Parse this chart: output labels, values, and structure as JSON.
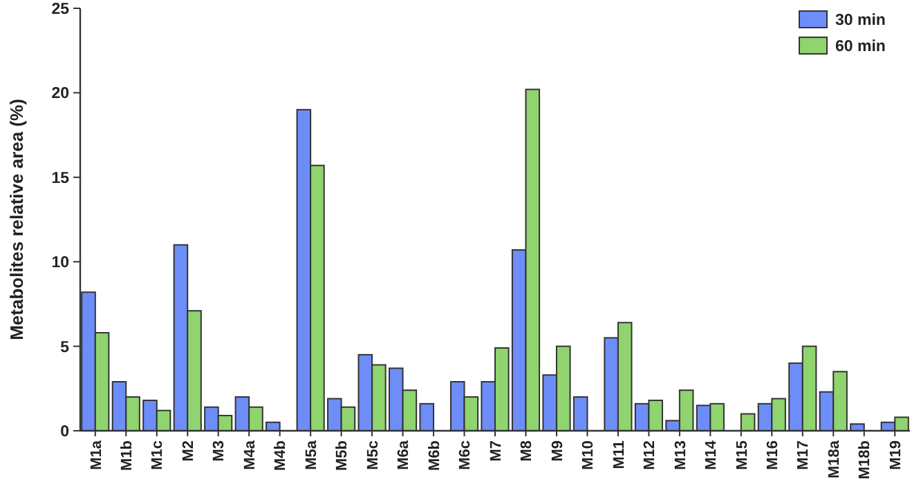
{
  "chart_data": {
    "type": "bar",
    "ylabel": "Metabolites relative area (%)",
    "categories": [
      "M1a",
      "M1b",
      "M1c",
      "M2",
      "M3",
      "M4a",
      "M4b",
      "M5a",
      "M5b",
      "M5c",
      "M6a",
      "M6b",
      "M6c",
      "M7",
      "M8",
      "M9",
      "M10",
      "M11",
      "M12",
      "M13",
      "M14",
      "M15",
      "M16",
      "M17",
      "M18a",
      "M18b",
      "M19"
    ],
    "series": [
      {
        "name": "30 min",
        "color": "#6d8ef9",
        "values": [
          8.2,
          2.9,
          1.8,
          11.0,
          1.4,
          2.0,
          0.5,
          19.0,
          1.9,
          4.5,
          3.7,
          1.6,
          2.9,
          2.9,
          10.7,
          3.3,
          2.0,
          5.5,
          1.6,
          0.6,
          1.5,
          null,
          1.6,
          4.0,
          2.3,
          0.4,
          0.5
        ]
      },
      {
        "name": "60 min",
        "color": "#8fd46e",
        "values": [
          5.8,
          2.0,
          1.2,
          7.1,
          0.9,
          1.4,
          null,
          15.7,
          1.4,
          3.9,
          2.4,
          null,
          2.0,
          4.9,
          20.2,
          5.0,
          null,
          6.4,
          1.8,
          2.4,
          1.6,
          1.0,
          1.9,
          5.0,
          3.5,
          null,
          0.8
        ]
      }
    ],
    "ylim": [
      0,
      25
    ],
    "yticks": [
      0,
      5,
      10,
      15,
      20,
      25
    ],
    "legend": "top right"
  }
}
